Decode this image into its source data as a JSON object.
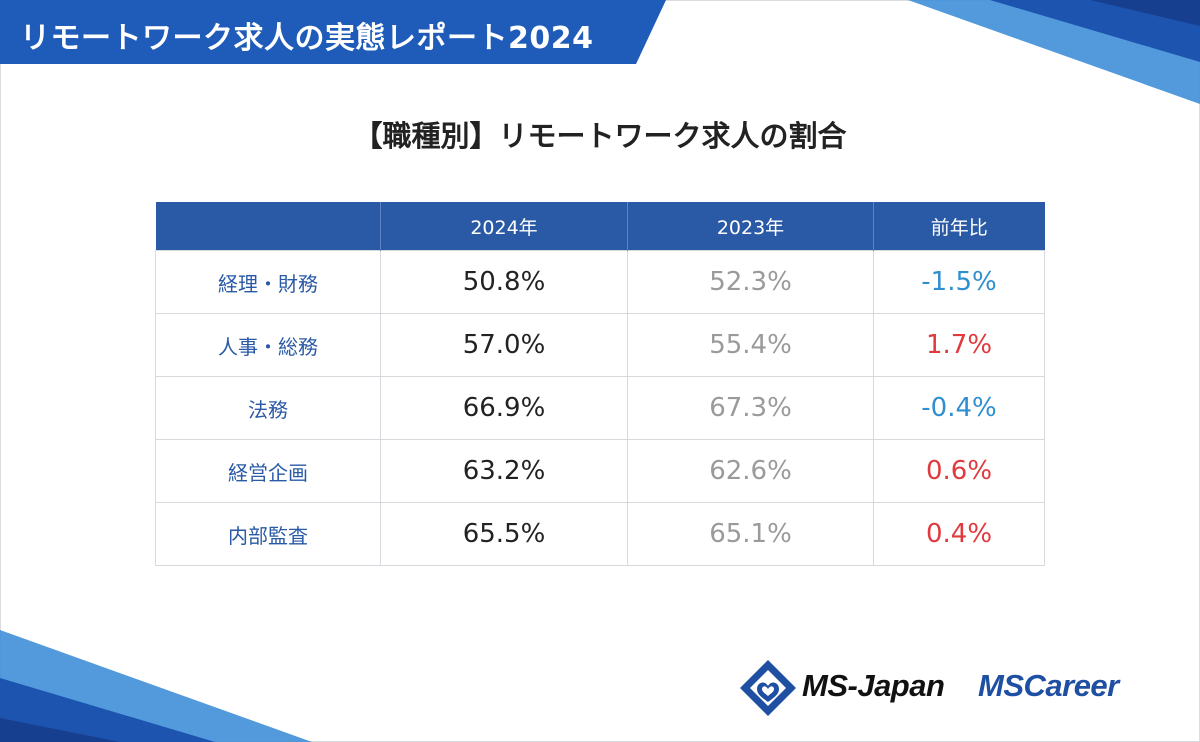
{
  "banner": {
    "title": "リモートワーク求人の実態レポート2024"
  },
  "heading": {
    "title": "【職種別】リモートワーク求人の割合"
  },
  "table": {
    "headers": [
      "",
      "2024年",
      "2023年",
      "前年比"
    ],
    "rows": [
      {
        "category": "経理・財務",
        "y2024": "50.8%",
        "y2023": "52.3%",
        "change": "-1.5%"
      },
      {
        "category": "人事・総務",
        "y2024": "57.0%",
        "y2023": "55.4%",
        "change": "1.7%"
      },
      {
        "category": "法務",
        "y2024": "66.9%",
        "y2023": "67.3%",
        "change": "-0.4%"
      },
      {
        "category": "経営企画",
        "y2024": "63.2%",
        "y2023": "62.6%",
        "change": "0.6%"
      },
      {
        "category": "内部監査",
        "y2024": "65.5%",
        "y2023": "65.1%",
        "change": "0.4%"
      }
    ]
  },
  "logos": {
    "primary": "MS-Japan",
    "secondary": "MSCareer"
  },
  "colors": {
    "brand_blue": "#1f5bb8",
    "header_blue": "#2a5aa6",
    "negative": "#2f8fd0",
    "positive": "#e0393e"
  }
}
